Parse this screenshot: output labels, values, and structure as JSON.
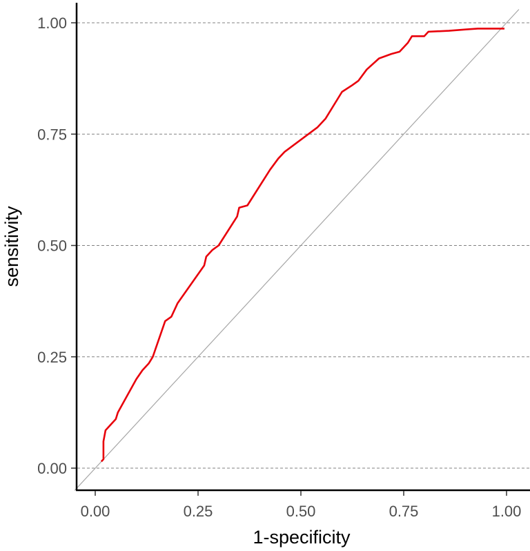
{
  "chart_data": {
    "type": "line",
    "title": "",
    "xlabel": "1-specificity",
    "ylabel": "sensitivity",
    "xlim": [
      -0.05,
      1.03
    ],
    "ylim": [
      -0.05,
      1.05
    ],
    "x_ticks": [
      0.0,
      0.25,
      0.5,
      0.75,
      1.0
    ],
    "x_tick_labels": [
      "0.00",
      "0.25",
      "0.50",
      "0.75",
      "1.00"
    ],
    "y_ticks": [
      0.0,
      0.25,
      0.5,
      0.75,
      1.0
    ],
    "y_tick_labels": [
      "0.00",
      "0.25",
      "0.50",
      "0.75",
      "1.00"
    ],
    "grid": "horizontal-dashed",
    "series": [
      {
        "color": "#e8000b",
        "points": [
          [
            0.015,
            0.015
          ],
          [
            0.02,
            0.02
          ],
          [
            0.02,
            0.06
          ],
          [
            0.025,
            0.085
          ],
          [
            0.04,
            0.1
          ],
          [
            0.05,
            0.11
          ],
          [
            0.055,
            0.125
          ],
          [
            0.1,
            0.2
          ],
          [
            0.115,
            0.22
          ],
          [
            0.13,
            0.235
          ],
          [
            0.14,
            0.25
          ],
          [
            0.17,
            0.33
          ],
          [
            0.185,
            0.34
          ],
          [
            0.2,
            0.37
          ],
          [
            0.265,
            0.455
          ],
          [
            0.27,
            0.475
          ],
          [
            0.285,
            0.49
          ],
          [
            0.3,
            0.5
          ],
          [
            0.345,
            0.565
          ],
          [
            0.35,
            0.585
          ],
          [
            0.37,
            0.59
          ],
          [
            0.425,
            0.67
          ],
          [
            0.445,
            0.695
          ],
          [
            0.46,
            0.71
          ],
          [
            0.54,
            0.765
          ],
          [
            0.56,
            0.785
          ],
          [
            0.6,
            0.845
          ],
          [
            0.625,
            0.86
          ],
          [
            0.64,
            0.87
          ],
          [
            0.66,
            0.895
          ],
          [
            0.69,
            0.92
          ],
          [
            0.72,
            0.93
          ],
          [
            0.74,
            0.935
          ],
          [
            0.76,
            0.955
          ],
          [
            0.77,
            0.97
          ],
          [
            0.8,
            0.97
          ],
          [
            0.81,
            0.98
          ],
          [
            0.86,
            0.982
          ],
          [
            0.9,
            0.985
          ],
          [
            0.93,
            0.987
          ],
          [
            0.995,
            0.987
          ]
        ]
      },
      {
        "color": "#a6a6a6",
        "points": [
          [
            -0.05,
            -0.05
          ],
          [
            1.03,
            1.03
          ]
        ]
      }
    ]
  }
}
